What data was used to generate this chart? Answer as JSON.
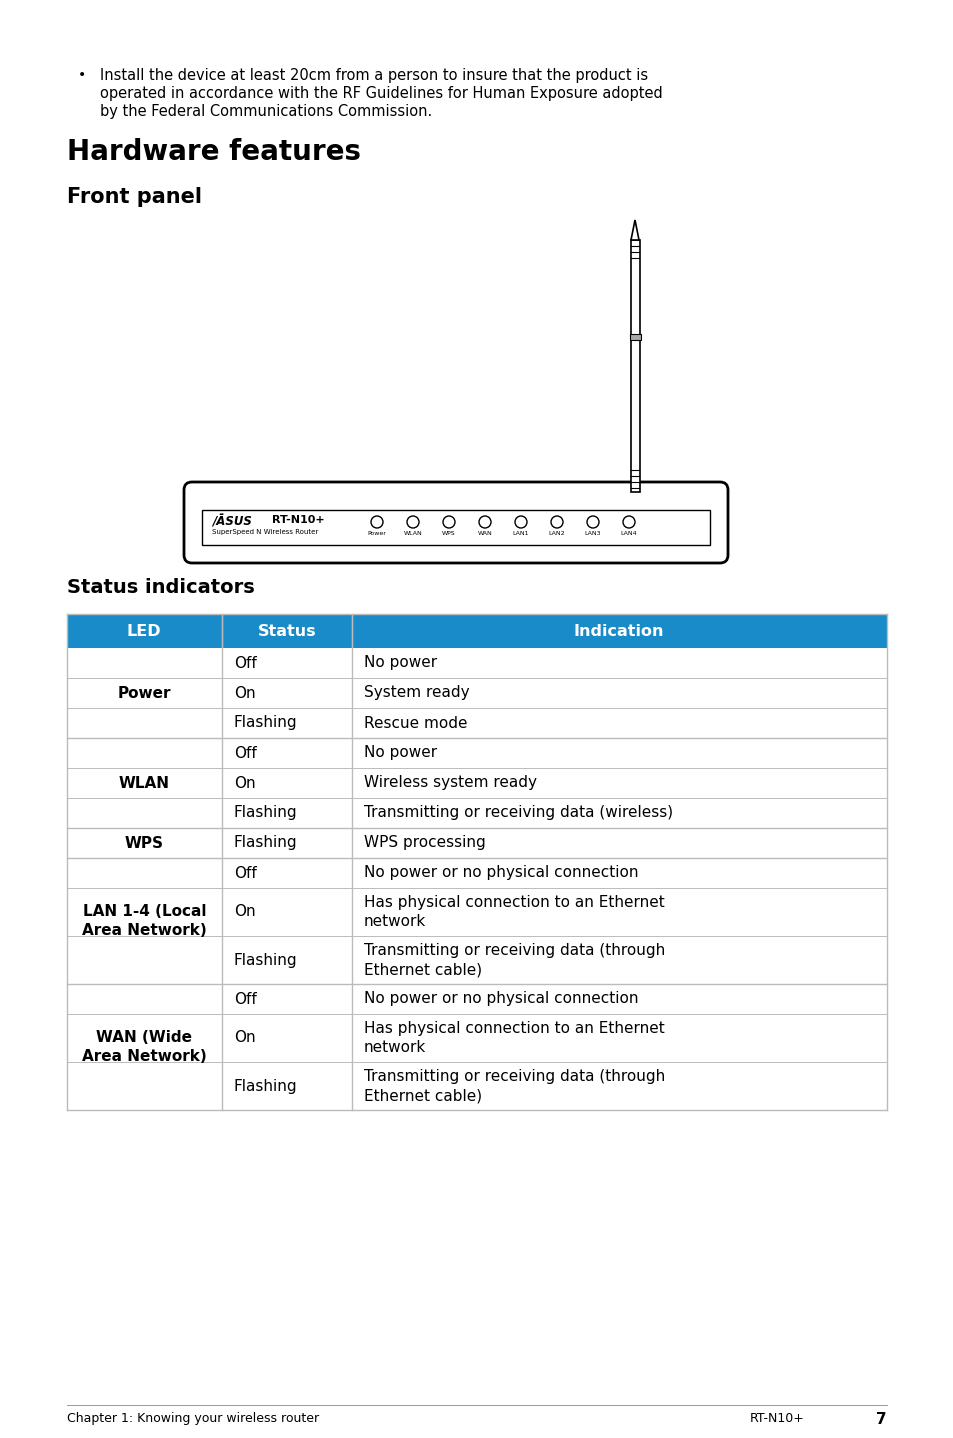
{
  "bg_color": "#ffffff",
  "bullet_text_line1": "Install the device at least 20cm from a person to insure that the product is",
  "bullet_text_line2": "operated in accordance with the RF Guidelines for Human Exposure adopted",
  "bullet_text_line3": "by the Federal Communications Commission.",
  "hw_title": "Hardware features",
  "front_panel_title": "Front panel",
  "status_title": "Status indicators",
  "table_header": [
    "LED",
    "Status",
    "Indication"
  ],
  "header_bg": "#1a8bc9",
  "header_text_color": "#ffffff",
  "row_bg_white": "#ffffff",
  "row_border_color": "#bbbbbb",
  "footer_left": "Chapter 1: Knowing your wireless router",
  "footer_right": "RT-N10+",
  "footer_page": "7",
  "row_groups": [
    {
      "led": "Power",
      "rows": [
        {
          "status": "Off",
          "indication": "No power",
          "ind_lines": 1
        },
        {
          "status": "On",
          "indication": "System ready",
          "ind_lines": 1
        },
        {
          "status": "Flashing",
          "indication": "Rescue mode",
          "ind_lines": 1
        }
      ]
    },
    {
      "led": "WLAN",
      "rows": [
        {
          "status": "Off",
          "indication": "No power",
          "ind_lines": 1
        },
        {
          "status": "On",
          "indication": "Wireless system ready",
          "ind_lines": 1
        },
        {
          "status": "Flashing",
          "indication": "Transmitting or receiving data (wireless)",
          "ind_lines": 1
        }
      ]
    },
    {
      "led": "WPS",
      "rows": [
        {
          "status": "Flashing",
          "indication": "WPS processing",
          "ind_lines": 1
        }
      ]
    },
    {
      "led": "LAN 1-4 (Local\nArea Network)",
      "rows": [
        {
          "status": "Off",
          "indication": "No power or no physical connection",
          "ind_lines": 1
        },
        {
          "status": "On",
          "indication": "Has physical connection to an Ethernet\nnetwork",
          "ind_lines": 2
        },
        {
          "status": "Flashing",
          "indication": "Transmitting or receiving data (through\nEthernet cable)",
          "ind_lines": 2
        }
      ]
    },
    {
      "led": "WAN (Wide\nArea Network)",
      "rows": [
        {
          "status": "Off",
          "indication": "No power or no physical connection",
          "ind_lines": 1
        },
        {
          "status": "On",
          "indication": "Has physical connection to an Ethernet\nnetwork",
          "ind_lines": 2
        },
        {
          "status": "Flashing",
          "indication": "Transmitting or receiving data (through\nEthernet cable)",
          "ind_lines": 2
        }
      ]
    }
  ]
}
